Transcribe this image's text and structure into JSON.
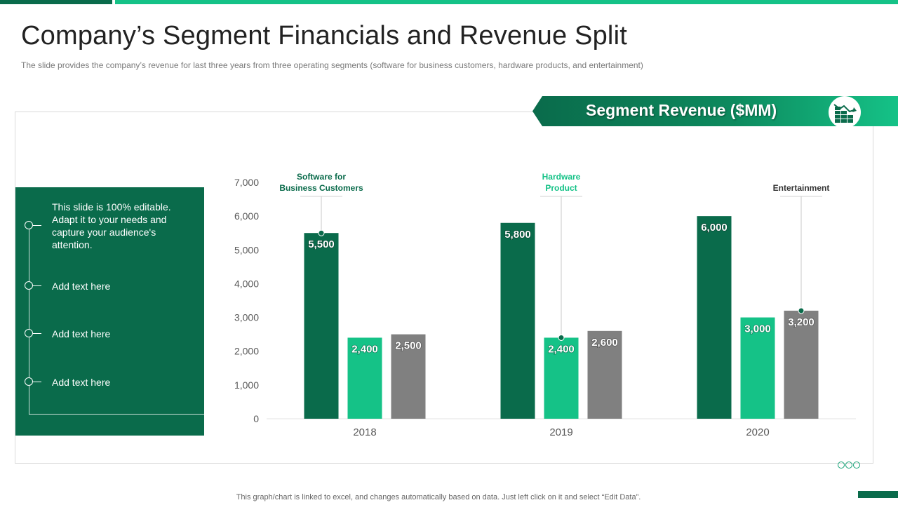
{
  "title": "Company’s Segment Financials and Revenue Split",
  "subtitle": "The slide provides  the company’s revenue  for last three years from three operating segments (software for business customers, hardware  products,  and entertainment)",
  "banner": {
    "label": "Segment Revenue ($MM)",
    "icon": "bar-chart-decline-icon"
  },
  "side_panel": {
    "items": [
      "This slide is 100% editable. Adapt it to your needs and capture your audience's attention.",
      "Add text here",
      "Add text here",
      "Add text here"
    ]
  },
  "footer": "This graph/chart is linked to excel,  and changes automatically based on data. Just left click on it and select “Edit Data”.",
  "colors": {
    "dark_green": "#0a6b4b",
    "light_green": "#15c287",
    "gray": "#808080"
  },
  "chart_data": {
    "type": "bar",
    "categories": [
      "2018",
      "2019",
      "2020"
    ],
    "series": [
      {
        "name": "Software for Business Customers",
        "values": [
          5500,
          5800,
          6000
        ],
        "color": "#0a6b4b"
      },
      {
        "name": "Hardware Product",
        "values": [
          2400,
          2400,
          3000
        ],
        "color": "#15c287"
      },
      {
        "name": "Entertainment",
        "values": [
          2500,
          2600,
          3200
        ],
        "color": "#808080"
      }
    ],
    "value_labels": [
      [
        "5,500",
        "5,800",
        "6,000"
      ],
      [
        "2,400",
        "2,400",
        "3,000"
      ],
      [
        "2,500",
        "2,600",
        "3,200"
      ]
    ],
    "annotations": [
      {
        "lines": [
          "Software for",
          "Business Customers"
        ],
        "series": 0,
        "category": 0,
        "color": "#0a6b4b"
      },
      {
        "lines": [
          "Hardware",
          "Product"
        ],
        "series": 1,
        "category": 1,
        "color": "#15c287"
      },
      {
        "lines": [
          "Entertainment"
        ],
        "series": 2,
        "category": 2,
        "color": "#333333"
      }
    ],
    "yticks": [
      "0",
      "1,000",
      "2,000",
      "3,000",
      "4,000",
      "5,000",
      "6,000",
      "7,000"
    ],
    "ylim": [
      0,
      7000
    ],
    "title": "Segment Revenue ($MM)",
    "xlabel": "",
    "ylabel": ""
  }
}
